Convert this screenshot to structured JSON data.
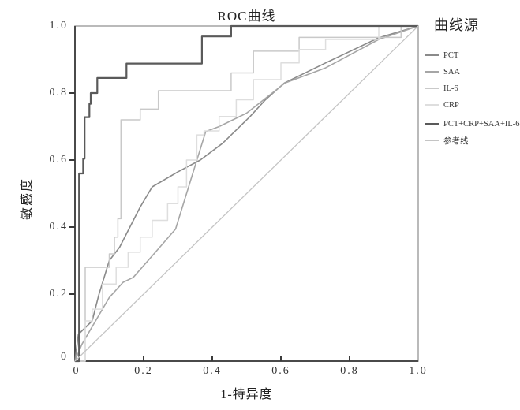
{
  "chart_data": {
    "type": "line",
    "title": "ROC曲线",
    "xlabel": "1-特异度",
    "ylabel": "敏感度",
    "xlim": [
      0,
      1
    ],
    "ylim": [
      0,
      1
    ],
    "grid": false,
    "x_ticks": [
      "0",
      "0.2",
      "0.4",
      "0.6",
      "0.8",
      "1.0"
    ],
    "y_ticks": [
      "0",
      "0.2",
      "0.4",
      "0.6",
      "0.8",
      "1.0"
    ],
    "legend": {
      "title": "曲线源",
      "position": "right"
    },
    "series": [
      {
        "name": "PCT",
        "color": "#8a8a8a",
        "style": "line",
        "width": 1.6,
        "points": [
          [
            0,
            0
          ],
          [
            0.01,
            0.08
          ],
          [
            0.05,
            0.12
          ],
          [
            0.07,
            0.2
          ],
          [
            0.1,
            0.3
          ],
          [
            0.13,
            0.34
          ],
          [
            0.19,
            0.46
          ],
          [
            0.225,
            0.52
          ],
          [
            0.3,
            0.565
          ],
          [
            0.365,
            0.6
          ],
          [
            0.43,
            0.65
          ],
          [
            0.51,
            0.73
          ],
          [
            0.555,
            0.78
          ],
          [
            0.61,
            0.83
          ],
          [
            0.73,
            0.89
          ],
          [
            0.885,
            0.965
          ],
          [
            1,
            1
          ]
        ]
      },
      {
        "name": "SAA",
        "color": "#a6a6a6",
        "style": "line",
        "width": 1.6,
        "points": [
          [
            0,
            0
          ],
          [
            0.02,
            0.05
          ],
          [
            0.06,
            0.12
          ],
          [
            0.1,
            0.19
          ],
          [
            0.14,
            0.235
          ],
          [
            0.17,
            0.25
          ],
          [
            0.23,
            0.32
          ],
          [
            0.293,
            0.394
          ],
          [
            0.325,
            0.5
          ],
          [
            0.381,
            0.685
          ],
          [
            0.42,
            0.7
          ],
          [
            0.5,
            0.74
          ],
          [
            0.612,
            0.83
          ],
          [
            0.73,
            0.875
          ],
          [
            0.885,
            0.96
          ],
          [
            1,
            1
          ]
        ]
      },
      {
        "name": "IL-6",
        "color": "#c9c9c9",
        "style": "step",
        "width": 1.5,
        "points": [
          [
            0,
            0
          ],
          [
            0.03,
            0
          ],
          [
            0.03,
            0.28
          ],
          [
            0.1,
            0.28
          ],
          [
            0.1,
            0.32
          ],
          [
            0.115,
            0.32
          ],
          [
            0.115,
            0.37
          ],
          [
            0.125,
            0.37
          ],
          [
            0.125,
            0.425
          ],
          [
            0.134,
            0.425
          ],
          [
            0.134,
            0.72
          ],
          [
            0.19,
            0.72
          ],
          [
            0.19,
            0.752
          ],
          [
            0.243,
            0.752
          ],
          [
            0.243,
            0.807
          ],
          [
            0.455,
            0.807
          ],
          [
            0.455,
            0.86
          ],
          [
            0.52,
            0.86
          ],
          [
            0.52,
            0.925
          ],
          [
            0.653,
            0.925
          ],
          [
            0.653,
            0.966
          ],
          [
            0.95,
            0.966
          ],
          [
            0.95,
            1
          ],
          [
            1,
            1
          ]
        ]
      },
      {
        "name": "CRP",
        "color": "#dedede",
        "style": "step",
        "width": 1.5,
        "points": [
          [
            0,
            0
          ],
          [
            0.03,
            0
          ],
          [
            0.03,
            0.12
          ],
          [
            0.05,
            0.12
          ],
          [
            0.05,
            0.155
          ],
          [
            0.08,
            0.155
          ],
          [
            0.08,
            0.23
          ],
          [
            0.12,
            0.23
          ],
          [
            0.12,
            0.28
          ],
          [
            0.155,
            0.28
          ],
          [
            0.155,
            0.325
          ],
          [
            0.19,
            0.325
          ],
          [
            0.19,
            0.37
          ],
          [
            0.225,
            0.37
          ],
          [
            0.225,
            0.42
          ],
          [
            0.27,
            0.42
          ],
          [
            0.27,
            0.47
          ],
          [
            0.3,
            0.47
          ],
          [
            0.3,
            0.52
          ],
          [
            0.325,
            0.52
          ],
          [
            0.325,
            0.6
          ],
          [
            0.355,
            0.6
          ],
          [
            0.355,
            0.675
          ],
          [
            0.376,
            0.675
          ],
          [
            0.376,
            0.687
          ],
          [
            0.42,
            0.687
          ],
          [
            0.42,
            0.73
          ],
          [
            0.47,
            0.73
          ],
          [
            0.47,
            0.78
          ],
          [
            0.52,
            0.78
          ],
          [
            0.52,
            0.84
          ],
          [
            0.6,
            0.84
          ],
          [
            0.6,
            0.89
          ],
          [
            0.653,
            0.89
          ],
          [
            0.653,
            0.93
          ],
          [
            0.73,
            0.93
          ],
          [
            0.73,
            0.96
          ],
          [
            0.885,
            0.96
          ],
          [
            0.885,
            1
          ],
          [
            1,
            1
          ]
        ]
      },
      {
        "name": "PCT+CRP+SAA+IL-6",
        "color": "#5a5a5a",
        "style": "step",
        "width": 2.2,
        "points": [
          [
            0,
            0
          ],
          [
            0.012,
            0
          ],
          [
            0.012,
            0.56
          ],
          [
            0.024,
            0.56
          ],
          [
            0.024,
            0.604
          ],
          [
            0.028,
            0.604
          ],
          [
            0.028,
            0.728
          ],
          [
            0.042,
            0.728
          ],
          [
            0.042,
            0.768
          ],
          [
            0.046,
            0.768
          ],
          [
            0.046,
            0.8
          ],
          [
            0.065,
            0.8
          ],
          [
            0.065,
            0.845
          ],
          [
            0.15,
            0.845
          ],
          [
            0.15,
            0.888
          ],
          [
            0.37,
            0.888
          ],
          [
            0.37,
            0.969
          ],
          [
            0.455,
            0.969
          ],
          [
            0.455,
            1
          ],
          [
            1,
            1
          ]
        ]
      },
      {
        "name": "参考线",
        "color": "#c4c4c4",
        "style": "line",
        "width": 1.3,
        "points": [
          [
            0,
            0
          ],
          [
            1,
            1
          ]
        ]
      }
    ]
  }
}
